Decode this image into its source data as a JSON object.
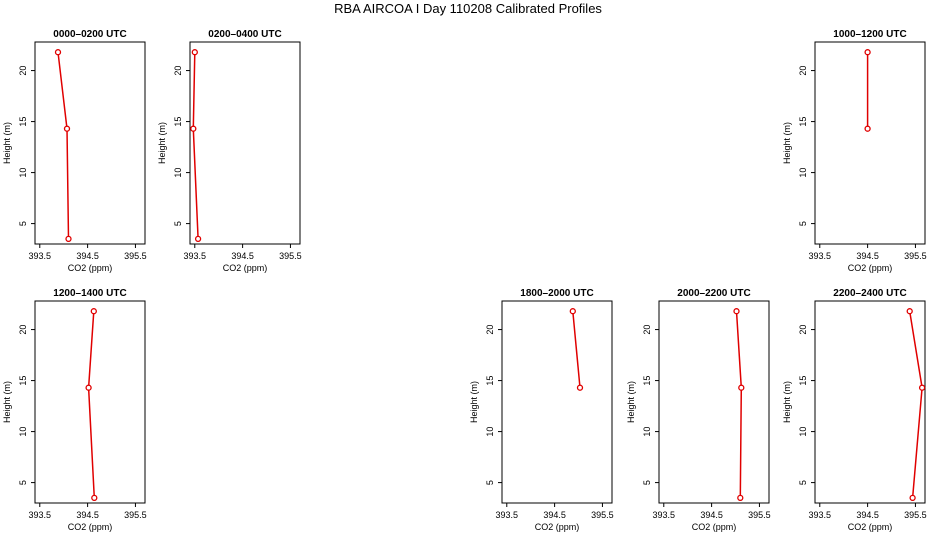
{
  "title": "RBA AIRCOA I  Day 110208  Calibrated Profiles",
  "chart_data": [
    {
      "type": "line",
      "title": "0000–0200 UTC",
      "xlabel": "CO2 (ppm)",
      "ylabel": "Height (m)",
      "xlim": [
        393.4,
        395.7
      ],
      "ylim": [
        3,
        22.8
      ],
      "xticks": [
        "393.5",
        "394.5",
        "395.5"
      ],
      "yticks": [
        "5",
        "10",
        "15",
        "20"
      ],
      "series": [
        {
          "x": [
            393.88,
            394.07,
            394.1
          ],
          "y": [
            21.8,
            14.3,
            3.5
          ]
        }
      ],
      "color": "#e00000",
      "grid": false
    },
    {
      "type": "line",
      "title": "0200–0400 UTC",
      "xlabel": "CO2 (ppm)",
      "ylabel": "Height (m)",
      "xlim": [
        393.4,
        395.7
      ],
      "ylim": [
        3,
        22.8
      ],
      "xticks": [
        "393.5",
        "394.5",
        "395.5"
      ],
      "yticks": [
        "5",
        "10",
        "15",
        "20"
      ],
      "series": [
        {
          "x": [
            393.5,
            393.47,
            393.57
          ],
          "y": [
            21.8,
            14.3,
            3.5
          ]
        }
      ],
      "color": "#e00000",
      "grid": false
    },
    {
      "type": "line",
      "title": "1000–1200 UTC",
      "xlabel": "CO2 (ppm)",
      "ylabel": "Height (m)",
      "xlim": [
        393.4,
        395.7
      ],
      "ylim": [
        3,
        22.8
      ],
      "xticks": [
        "393.5",
        "394.5",
        "395.5"
      ],
      "yticks": [
        "5",
        "10",
        "15",
        "20"
      ],
      "series": [
        {
          "x": [
            394.5,
            394.5
          ],
          "y": [
            21.8,
            14.3
          ]
        }
      ],
      "color": "#e00000",
      "grid": false
    },
    {
      "type": "line",
      "title": "1200–1400 UTC",
      "xlabel": "CO2 (ppm)",
      "ylabel": "Height (m)",
      "xlim": [
        393.4,
        395.7
      ],
      "ylim": [
        3,
        22.8
      ],
      "xticks": [
        "393.5",
        "394.5",
        "395.5"
      ],
      "yticks": [
        "5",
        "10",
        "15",
        "20"
      ],
      "series": [
        {
          "x": [
            394.63,
            394.52,
            394.64
          ],
          "y": [
            21.8,
            14.3,
            3.5
          ]
        }
      ],
      "color": "#e00000",
      "grid": false
    },
    {
      "type": "line",
      "title": "1800–2000 UTC",
      "xlabel": "CO2 (ppm)",
      "ylabel": "Height (m)",
      "xlim": [
        393.4,
        395.7
      ],
      "ylim": [
        3,
        22.8
      ],
      "xticks": [
        "393.5",
        "394.5",
        "395.5"
      ],
      "yticks": [
        "5",
        "10",
        "15",
        "20"
      ],
      "series": [
        {
          "x": [
            394.88,
            395.03
          ],
          "y": [
            21.8,
            14.3
          ]
        }
      ],
      "color": "#e00000",
      "grid": false
    },
    {
      "type": "line",
      "title": "2000–2200 UTC",
      "xlabel": "CO2 (ppm)",
      "ylabel": "Height (m)",
      "xlim": [
        393.4,
        395.7
      ],
      "ylim": [
        3,
        22.8
      ],
      "xticks": [
        "393.5",
        "394.5",
        "395.5"
      ],
      "yticks": [
        "5",
        "10",
        "15",
        "20"
      ],
      "series": [
        {
          "x": [
            395.02,
            395.12,
            395.1
          ],
          "y": [
            21.8,
            14.3,
            3.5
          ]
        }
      ],
      "color": "#e00000",
      "grid": false
    },
    {
      "type": "line",
      "title": "2200–2400 UTC",
      "xlabel": "CO2 (ppm)",
      "ylabel": "Height (m)",
      "xlim": [
        393.4,
        395.7
      ],
      "ylim": [
        3,
        22.8
      ],
      "xticks": [
        "393.5",
        "394.5",
        "395.5"
      ],
      "yticks": [
        "5",
        "10",
        "15",
        "20"
      ],
      "series": [
        {
          "x": [
            395.38,
            395.64,
            395.44
          ],
          "y": [
            21.8,
            14.3,
            3.5
          ]
        }
      ],
      "color": "#e00000",
      "grid": false
    }
  ]
}
